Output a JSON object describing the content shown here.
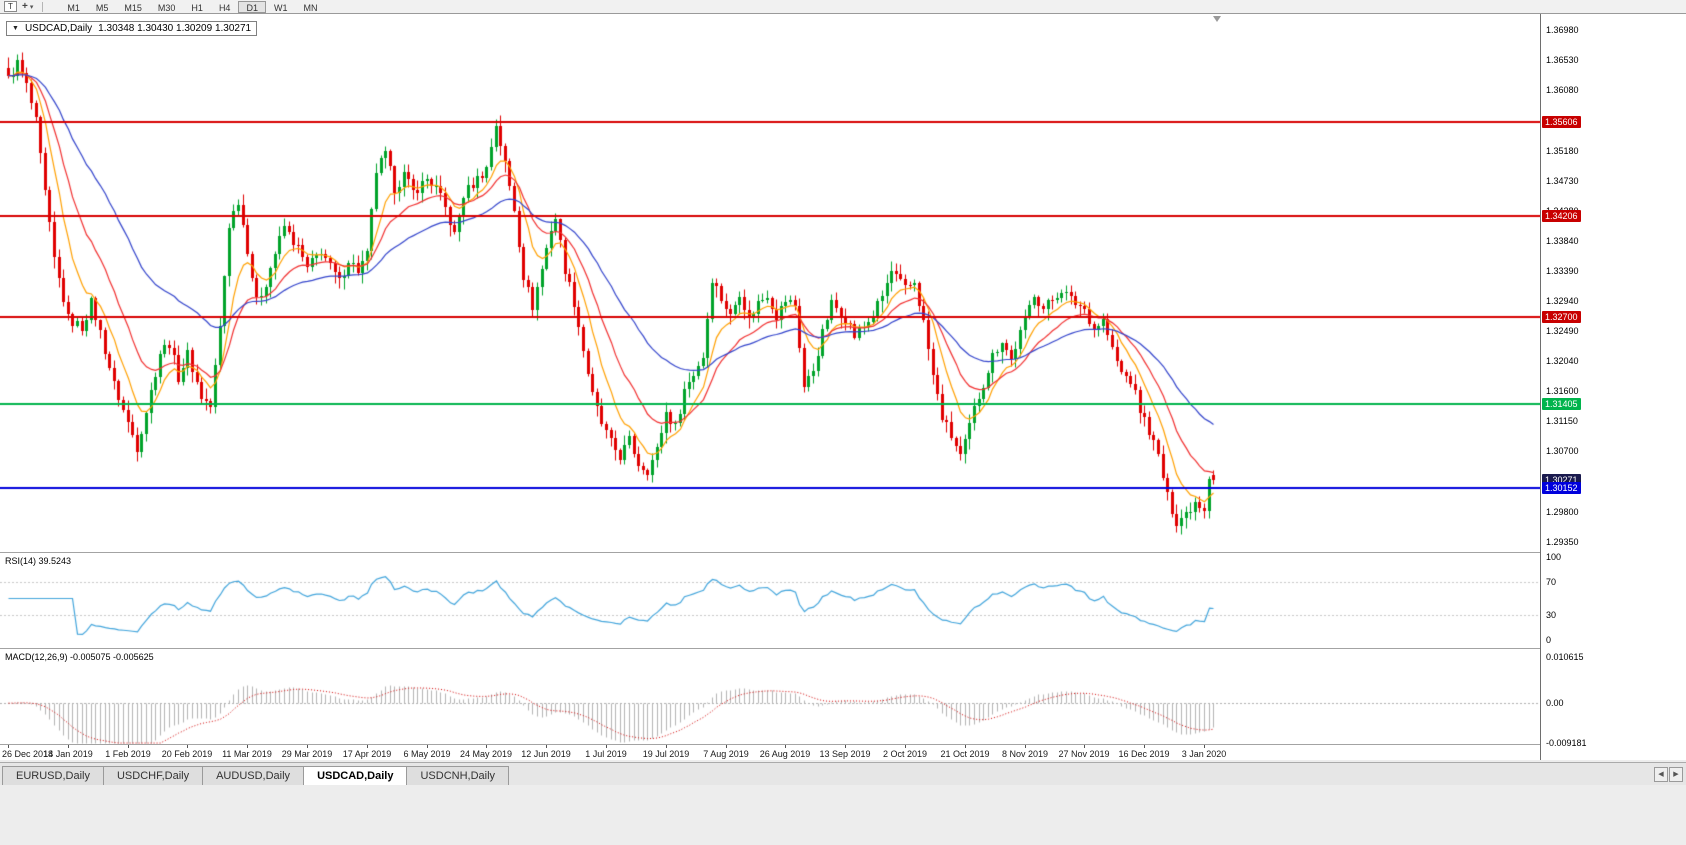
{
  "toolbar": {
    "template_icon": "T",
    "crosshair_glyph": "+",
    "dropdown_glyph": "▾",
    "timeframes": [
      "M1",
      "M5",
      "M15",
      "M30",
      "H1",
      "H4",
      "D1",
      "W1",
      "MN"
    ],
    "active_timeframe": "D1"
  },
  "chart": {
    "expand_arrow": "▼",
    "symbol_period": "USDCAD,Daily",
    "ohlc": "1.30348 1.30430 1.30209 1.30271",
    "open": "1.30348",
    "high": "1.30430",
    "low": "1.30209",
    "close": "1.30271"
  },
  "price_scale": {
    "ticks": [
      "1.36980",
      "1.36530",
      "1.36080",
      "1.35630",
      "1.35180",
      "1.34730",
      "1.34280",
      "1.33840",
      "1.33390",
      "1.32940",
      "1.32490",
      "1.32040",
      "1.31600",
      "1.31150",
      "1.30700",
      "1.30250",
      "1.29800",
      "1.29350"
    ],
    "markers": [
      {
        "label": "1.35606",
        "price": 1.35606,
        "bg": "#c80000"
      },
      {
        "label": "1.34206",
        "price": 1.34206,
        "bg": "#c80000"
      },
      {
        "label": "1.32700",
        "price": 1.327,
        "bg": "#c80000"
      },
      {
        "label": "1.31405",
        "price": 1.31405,
        "bg": "#00b44c"
      },
      {
        "label": "1.30271",
        "price": 1.30271,
        "bg": "#1a1a4e"
      },
      {
        "label": "1.30152",
        "price": 1.30152,
        "bg": "#0000dc"
      }
    ]
  },
  "rsi": {
    "label": "RSI(14) 39.5243",
    "value": 39.5243,
    "scale": [
      "100",
      "70",
      "30",
      "0"
    ],
    "levels": [
      70,
      30
    ],
    "line_color": "#42a5dc"
  },
  "macd": {
    "label": "MACD(12,26,9) -0.005075 -0.005625",
    "macd_value": -0.005075,
    "signal_value": -0.005625,
    "scale": [
      "0.010615",
      "0.00",
      "-0.009181"
    ],
    "max": 0.010615,
    "min": -0.009181,
    "hist_color": "#b4b4b4",
    "signal_color": "#d40000"
  },
  "time_axis": {
    "labels": [
      "26 Dec 2018",
      "14 Jan 2019",
      "1 Feb 2019",
      "20 Feb 2019",
      "11 Mar 2019",
      "29 Mar 2019",
      "17 Apr 2019",
      "6 May 2019",
      "24 May 2019",
      "12 Jun 2019",
      "1 Jul 2019",
      "19 Jul 2019",
      "7 Aug 2019",
      "26 Aug 2019",
      "13 Sep 2019",
      "2 Oct 2019",
      "21 Oct 2019",
      "8 Nov 2019",
      "27 Nov 2019",
      "16 Dec 2019",
      "3 Jan 2020"
    ]
  },
  "tabs": {
    "items": [
      "EURUSD,Daily",
      "USDCHF,Daily",
      "AUDUSD,Daily",
      "USDCAD,Daily",
      "USDCNH,Daily"
    ],
    "active": "USDCAD,Daily",
    "scroll_left": "◀",
    "scroll_right": "▶"
  },
  "chart_data": {
    "type": "candlestick",
    "symbol": "USDCAD",
    "timeframe": "Daily",
    "bars": 263,
    "label_interval": 13,
    "y_axis": {
      "top": 1.3698,
      "bottom": 1.2935
    },
    "last_candle": {
      "open": 1.30348,
      "high": 1.3043,
      "low": 1.30209,
      "close": 1.30271
    },
    "up_color": "#00a32a",
    "down_color": "#e00000",
    "h_lines": [
      {
        "price": 1.35606,
        "color": "#d80000",
        "role": "resistance"
      },
      {
        "price": 1.34206,
        "color": "#d80000",
        "role": "resistance"
      },
      {
        "price": 1.327,
        "color": "#d80000",
        "role": "resistance"
      },
      {
        "price": 1.31405,
        "color": "#00b44c",
        "role": "support"
      },
      {
        "price": 1.30152,
        "color": "#0000dc",
        "role": "support"
      }
    ],
    "moving_averages": [
      {
        "period": 8,
        "color": "#ffa000"
      },
      {
        "period": 17,
        "color": "#f23030"
      },
      {
        "period": 40,
        "color": "#3344cc"
      }
    ],
    "indicators": [
      {
        "name": "RSI",
        "params": [
          14
        ],
        "current": 39.5243
      },
      {
        "name": "MACD",
        "params": [
          12,
          26,
          9
        ],
        "current": [
          -0.005075,
          -0.005625
        ]
      }
    ],
    "close_path_anchors": [
      [
        0,
        1.3625
      ],
      [
        2,
        1.3648
      ],
      [
        4,
        1.3615
      ],
      [
        6,
        1.356
      ],
      [
        8,
        1.3455
      ],
      [
        10,
        1.3355
      ],
      [
        13,
        1.3268
      ],
      [
        16,
        1.3255
      ],
      [
        18,
        1.3292
      ],
      [
        20,
        1.3248
      ],
      [
        23,
        1.317
      ],
      [
        26,
        1.3112
      ],
      [
        28,
        1.3076
      ],
      [
        30,
        1.313
      ],
      [
        33,
        1.3218
      ],
      [
        35,
        1.3232
      ],
      [
        37,
        1.318
      ],
      [
        39,
        1.3215
      ],
      [
        42,
        1.3152
      ],
      [
        44,
        1.3136
      ],
      [
        46,
        1.3255
      ],
      [
        48,
        1.3408
      ],
      [
        50,
        1.3445
      ],
      [
        52,
        1.3372
      ],
      [
        54,
        1.3292
      ],
      [
        56,
        1.3322
      ],
      [
        58,
        1.3365
      ],
      [
        60,
        1.3405
      ],
      [
        63,
        1.3372
      ],
      [
        65,
        1.3342
      ],
      [
        68,
        1.337
      ],
      [
        70,
        1.3345
      ],
      [
        72,
        1.3322
      ],
      [
        74,
        1.3356
      ],
      [
        76,
        1.334
      ],
      [
        78,
        1.3362
      ],
      [
        80,
        1.3488
      ],
      [
        82,
        1.3512
      ],
      [
        84,
        1.3462
      ],
      [
        86,
        1.3482
      ],
      [
        88,
        1.3456
      ],
      [
        91,
        1.3476
      ],
      [
        93,
        1.3462
      ],
      [
        95,
        1.3432
      ],
      [
        97,
        1.3392
      ],
      [
        99,
        1.3452
      ],
      [
        102,
        1.3476
      ],
      [
        104,
        1.3492
      ],
      [
        106,
        1.3558
      ],
      [
        108,
        1.3498
      ],
      [
        110,
        1.3432
      ],
      [
        112,
        1.3332
      ],
      [
        114,
        1.3286
      ],
      [
        116,
        1.3342
      ],
      [
        118,
        1.3402
      ],
      [
        119,
        1.3418
      ],
      [
        121,
        1.3342
      ],
      [
        123,
        1.3292
      ],
      [
        125,
        1.3222
      ],
      [
        127,
        1.3152
      ],
      [
        129,
        1.3112
      ],
      [
        131,
        1.3082
      ],
      [
        133,
        1.3062
      ],
      [
        135,
        1.3086
      ],
      [
        137,
        1.3052
      ],
      [
        139,
        1.3042
      ],
      [
        141,
        1.3072
      ],
      [
        143,
        1.3128
      ],
      [
        145,
        1.3106
      ],
      [
        147,
        1.3162
      ],
      [
        149,
        1.3186
      ],
      [
        151,
        1.3212
      ],
      [
        153,
        1.3328
      ],
      [
        155,
        1.3298
      ],
      [
        157,
        1.3272
      ],
      [
        159,
        1.3308
      ],
      [
        161,
        1.3266
      ],
      [
        163,
        1.3292
      ],
      [
        165,
        1.3304
      ],
      [
        167,
        1.3272
      ],
      [
        169,
        1.3295
      ],
      [
        171,
        1.3288
      ],
      [
        173,
        1.3166
      ],
      [
        175,
        1.3192
      ],
      [
        177,
        1.3246
      ],
      [
        179,
        1.329
      ],
      [
        182,
        1.327
      ],
      [
        184,
        1.3242
      ],
      [
        186,
        1.3256
      ],
      [
        188,
        1.3272
      ],
      [
        190,
        1.3302
      ],
      [
        192,
        1.3338
      ],
      [
        195,
        1.3312
      ],
      [
        197,
        1.3322
      ],
      [
        199,
        1.3262
      ],
      [
        201,
        1.3182
      ],
      [
        203,
        1.3122
      ],
      [
        205,
        1.3092
      ],
      [
        207,
        1.3062
      ],
      [
        208,
        1.3082
      ],
      [
        210,
        1.3132
      ],
      [
        212,
        1.3172
      ],
      [
        214,
        1.3212
      ],
      [
        216,
        1.3236
      ],
      [
        218,
        1.3206
      ],
      [
        221,
        1.3266
      ],
      [
        223,
        1.3306
      ],
      [
        225,
        1.3282
      ],
      [
        227,
        1.3296
      ],
      [
        229,
        1.3312
      ],
      [
        231,
        1.3296
      ],
      [
        234,
        1.3282
      ],
      [
        236,
        1.3252
      ],
      [
        238,
        1.3266
      ],
      [
        240,
        1.3222
      ],
      [
        242,
        1.3186
      ],
      [
        244,
        1.3176
      ],
      [
        246,
        1.3132
      ],
      [
        248,
        1.3102
      ],
      [
        250,
        1.3062
      ],
      [
        252,
        1.3002
      ],
      [
        254,
        1.2966
      ],
      [
        256,
        1.2978
      ],
      [
        258,
        1.2996
      ],
      [
        260,
        1.2986
      ],
      [
        261,
        1.3035
      ],
      [
        262,
        1.30271
      ]
    ]
  }
}
